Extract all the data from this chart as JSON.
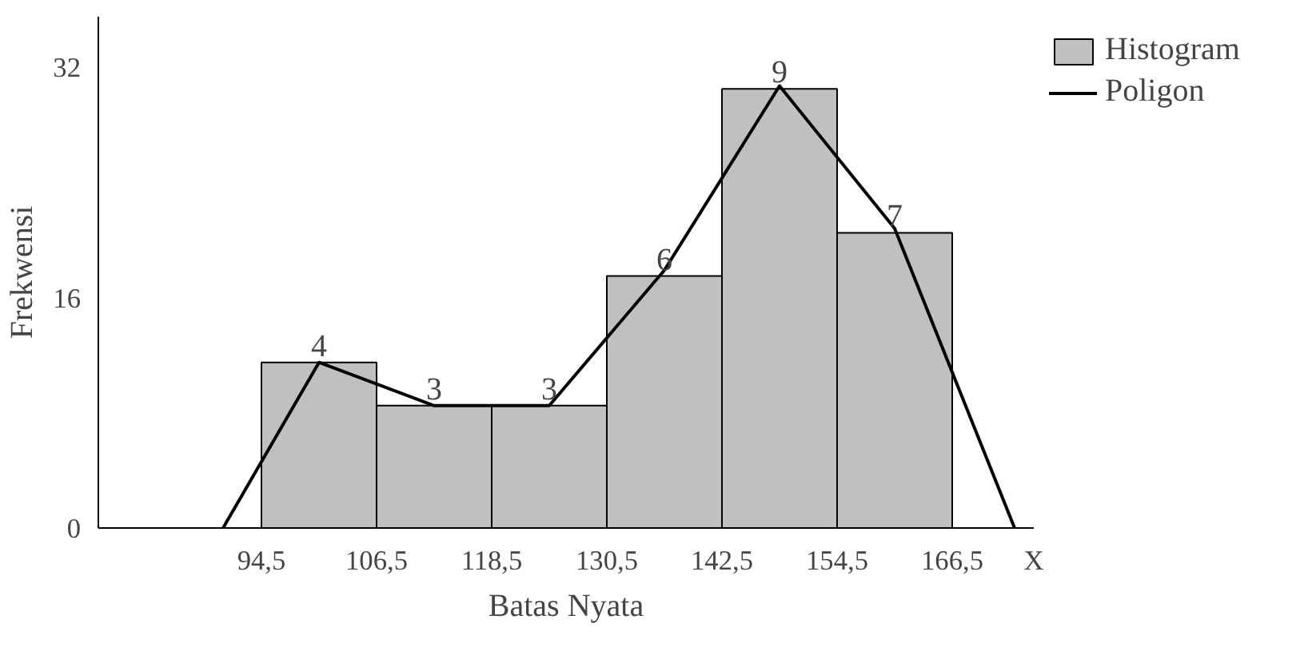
{
  "chart_data": {
    "type": "histogram",
    "xlabel": "Batas Nyata",
    "ylabel": "Frekwensi",
    "annotations": [
      {
        "text": "4",
        "x": 100.5,
        "y": 11.5
      },
      {
        "text": "3",
        "x": 112.5,
        "y": 8.5
      },
      {
        "text": "3",
        "x": 124.5,
        "y": 8.5
      },
      {
        "text": "6",
        "x": 136.5,
        "y": 17.5
      },
      {
        "text": "9",
        "x": 148.5,
        "y": 30.5
      },
      {
        "text": "7",
        "x": 160.5,
        "y": 20.5
      }
    ],
    "series": [
      {
        "name": "Histogram",
        "color": "#c0c0c0",
        "bins": [
          94.5,
          106.5,
          118.5,
          130.5,
          142.5,
          154.5,
          166.5
        ],
        "values": [
          11.5,
          8.5,
          8.5,
          17.5,
          30.5,
          20.5
        ]
      },
      {
        "name": "Poligon",
        "type": "line",
        "color": "#000000",
        "x": [
          90.5,
          100.5,
          112.5,
          124.5,
          136.5,
          148.5,
          160.5,
          173
        ],
        "values": [
          0,
          11.5,
          8.5,
          8.5,
          17.9,
          30.7,
          20.8,
          0
        ]
      }
    ],
    "xlim": [
      77.5,
      175
    ],
    "ylim": [
      0,
      35.5
    ],
    "xticks": [
      {
        "value": 94.5,
        "label": "94,5"
      },
      {
        "value": 106.5,
        "label": "106,5"
      },
      {
        "value": 118.5,
        "label": "118,5"
      },
      {
        "value": 130.5,
        "label": "130,5"
      },
      {
        "value": 142.5,
        "label": "142,5"
      },
      {
        "value": 154.5,
        "label": "154,5"
      },
      {
        "value": 166.5,
        "label": "166,5"
      },
      {
        "value": 175,
        "label": "X"
      }
    ],
    "yticks": [
      0,
      16,
      32
    ],
    "grid": false,
    "legend": "right"
  }
}
